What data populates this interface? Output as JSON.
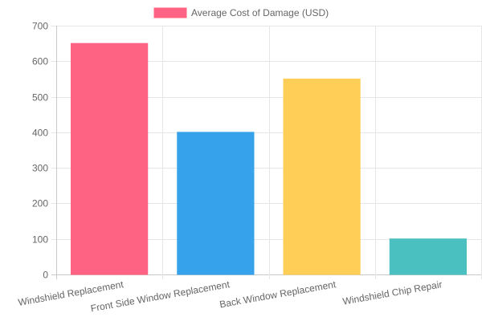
{
  "chart_data": {
    "type": "bar",
    "categories": [
      "Windshield Replacement",
      "Front Side Window Replacement",
      "Back Window Replacement",
      "Windshield Chip Repair"
    ],
    "series": [
      {
        "name": "Average Cost of Damage (USD)",
        "values": [
          650,
          400,
          550,
          100
        ]
      }
    ],
    "colors": [
      "#ff6384",
      "#36a2eb",
      "#ffce56",
      "#4bc0c0"
    ],
    "legend_color": "#ff6384",
    "ylim": [
      0,
      700
    ],
    "yticks": [
      "0",
      "100",
      "200",
      "300",
      "400",
      "500",
      "600",
      "700"
    ],
    "grid": true,
    "legend_position": "top",
    "title": "",
    "xlabel": "",
    "ylabel": ""
  }
}
